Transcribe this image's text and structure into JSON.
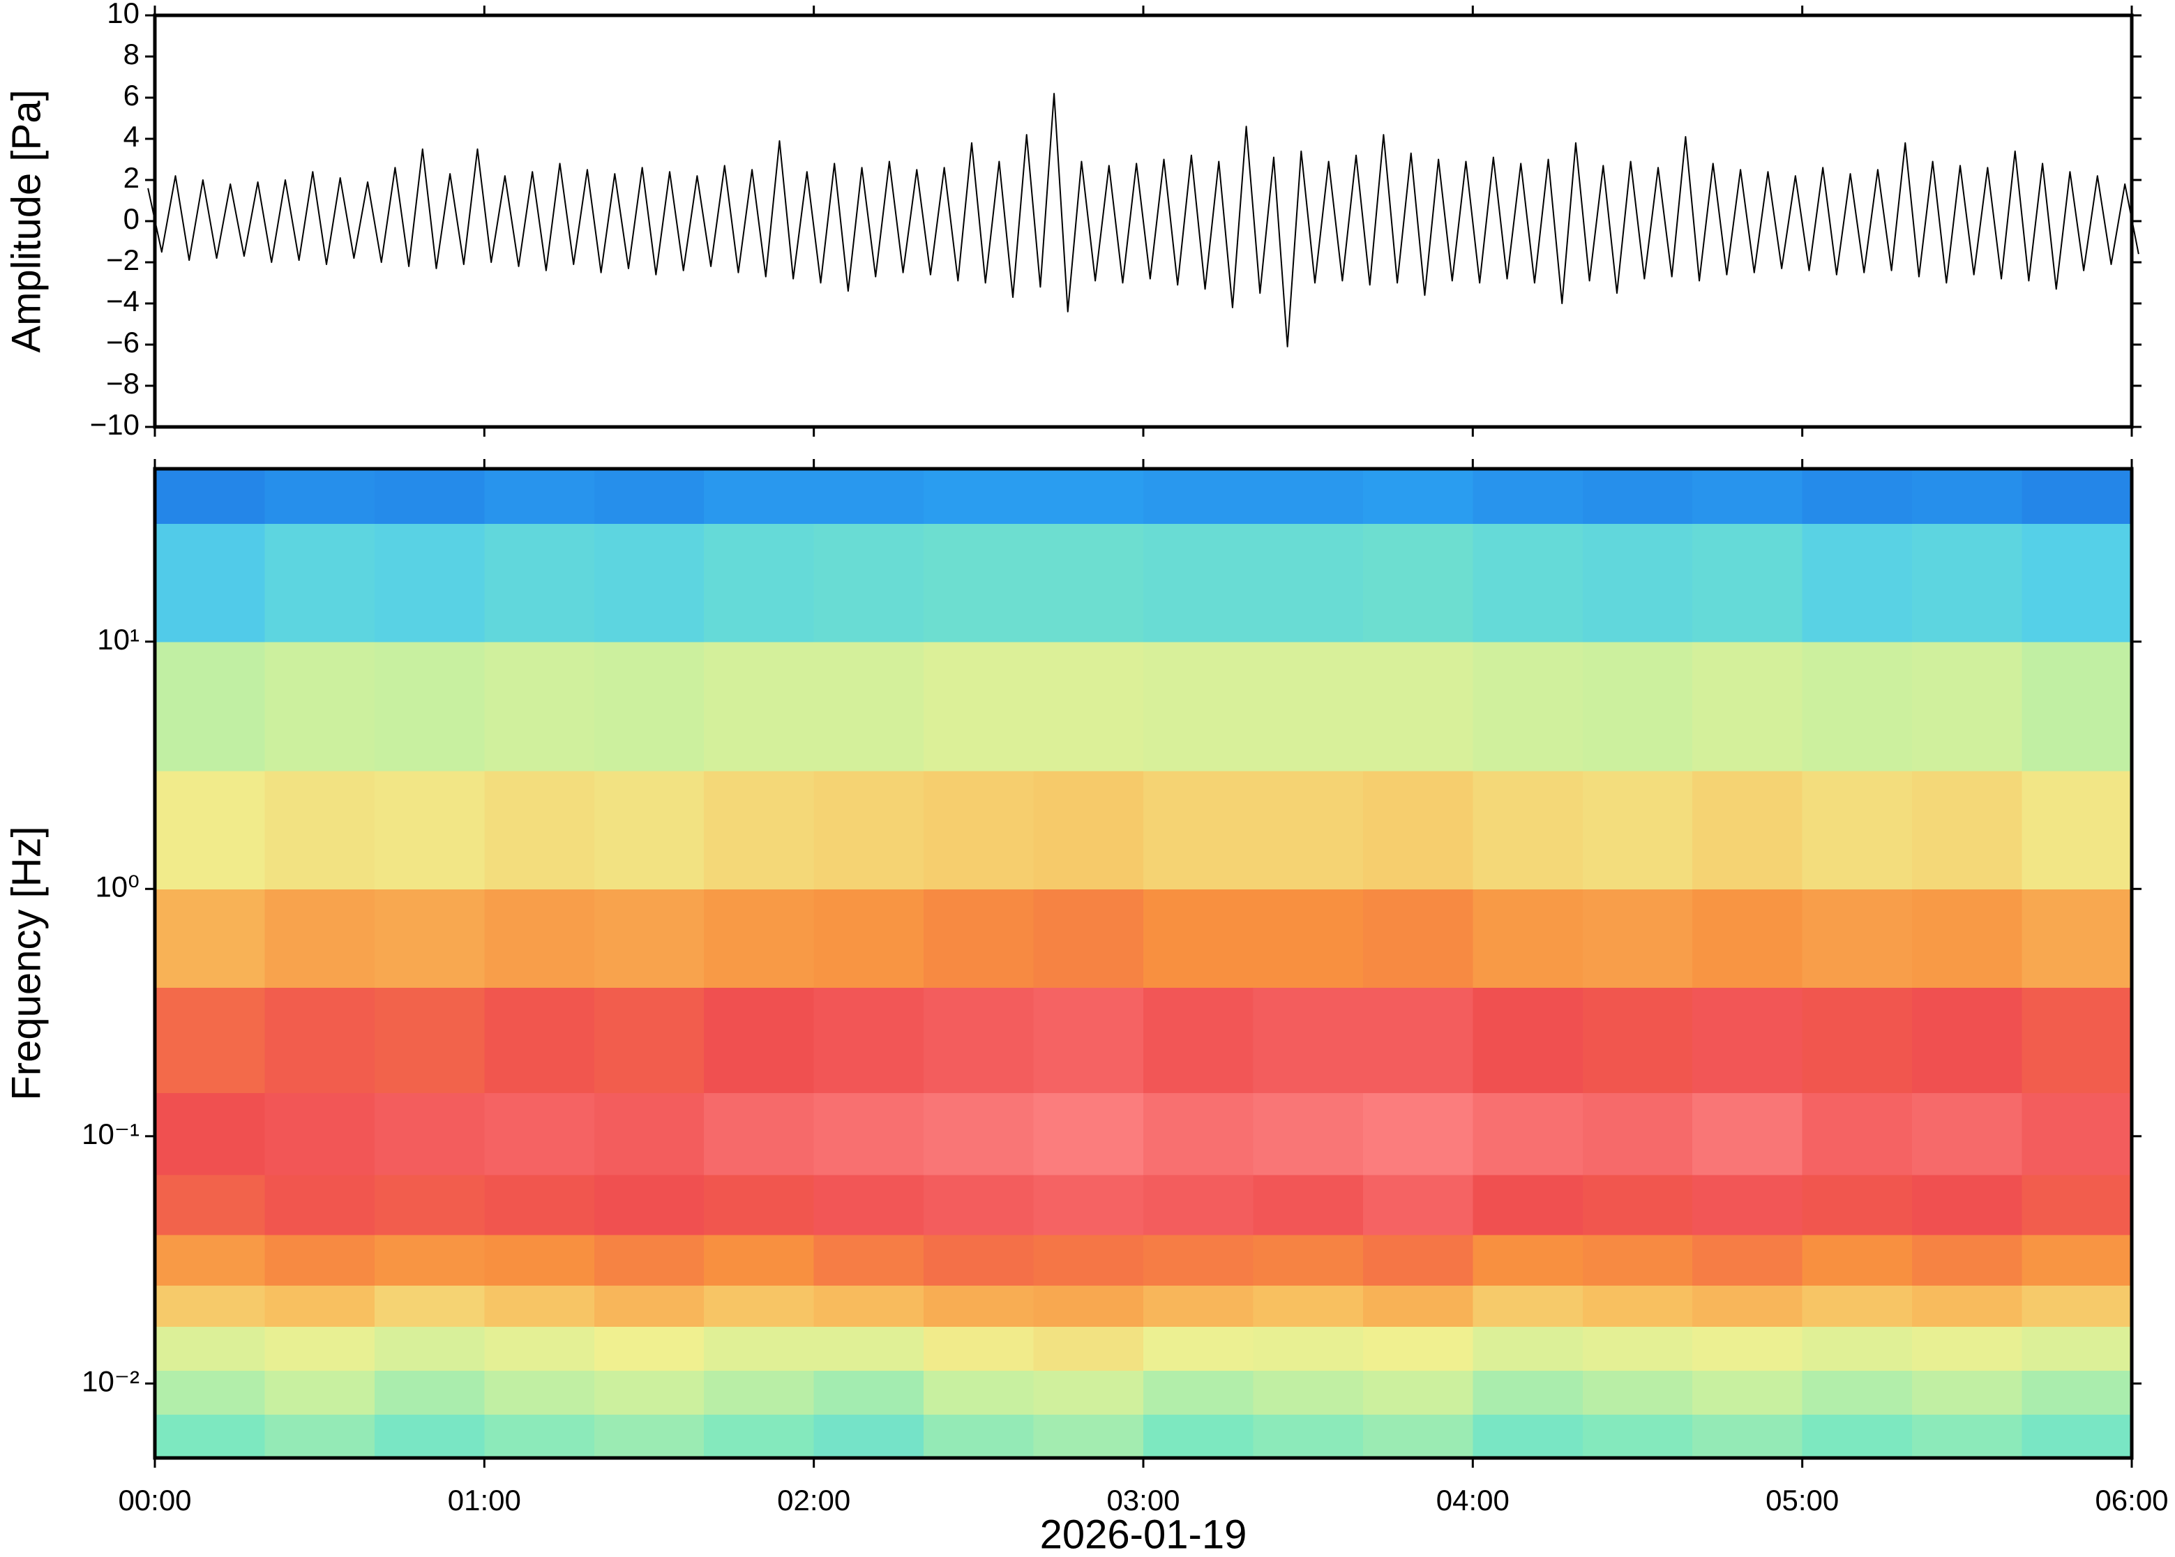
{
  "chart_data": [
    {
      "type": "range",
      "ylabel": "Amplitude [Pa]",
      "color": "#000000",
      "x": [
        0,
        5,
        10,
        15,
        20,
        25,
        30,
        35,
        40,
        45,
        50,
        55,
        60,
        65,
        70,
        75,
        80,
        85,
        90,
        95,
        100,
        105,
        110,
        115,
        120,
        125,
        130,
        135,
        140,
        145,
        150,
        155,
        160,
        165,
        170,
        175,
        180,
        185,
        190,
        195,
        200,
        205,
        210,
        215,
        220,
        225,
        230,
        235,
        240,
        245,
        250,
        255,
        260,
        265,
        270,
        275,
        280,
        285,
        290,
        295,
        300,
        305,
        310,
        315,
        320,
        325,
        330,
        335,
        340,
        345,
        350,
        355,
        360
      ],
      "high": [
        1.6,
        2.2,
        2.0,
        1.8,
        1.9,
        2.0,
        2.4,
        2.1,
        1.9,
        2.6,
        3.5,
        2.3,
        3.5,
        2.2,
        2.4,
        2.8,
        2.5,
        2.3,
        2.6,
        2.4,
        2.2,
        2.7,
        2.5,
        3.9,
        2.4,
        2.8,
        2.6,
        2.9,
        2.5,
        2.6,
        3.8,
        2.9,
        4.2,
        6.2,
        2.9,
        2.7,
        2.8,
        3.0,
        3.2,
        2.9,
        4.6,
        3.1,
        3.4,
        2.9,
        3.2,
        4.2,
        3.3,
        3.0,
        2.9,
        3.1,
        2.8,
        3.0,
        3.8,
        2.7,
        2.9,
        2.6,
        4.1,
        2.8,
        2.5,
        2.4,
        2.2,
        2.6,
        2.3,
        2.5,
        3.8,
        2.9,
        2.7,
        2.6,
        3.4,
        2.8,
        2.4,
        2.2,
        1.8
      ],
      "low": [
        -1.5,
        -1.9,
        -1.8,
        -1.7,
        -2.0,
        -1.9,
        -2.1,
        -1.8,
        -2.0,
        -2.2,
        -2.3,
        -2.1,
        -2.0,
        -2.2,
        -2.4,
        -2.1,
        -2.5,
        -2.3,
        -2.6,
        -2.4,
        -2.2,
        -2.5,
        -2.7,
        -2.8,
        -3.0,
        -3.4,
        -2.7,
        -2.5,
        -2.6,
        -2.9,
        -3.0,
        -3.7,
        -3.2,
        -4.4,
        -2.9,
        -3.0,
        -2.8,
        -3.1,
        -3.3,
        -4.2,
        -3.5,
        -6.1,
        -3.0,
        -2.9,
        -3.1,
        -3.0,
        -3.6,
        -2.9,
        -3.0,
        -2.8,
        -3.0,
        -4.0,
        -2.9,
        -3.5,
        -2.8,
        -2.7,
        -2.9,
        -2.6,
        -2.5,
        -2.3,
        -2.4,
        -2.6,
        -2.5,
        -2.4,
        -2.7,
        -3.0,
        -2.6,
        -2.8,
        -2.9,
        -3.3,
        -2.4,
        -2.1,
        -1.6
      ],
      "xlim": [
        0,
        360
      ],
      "xticks": [
        0,
        60,
        120,
        180,
        240,
        300,
        360
      ],
      "ylim": [
        -10,
        10
      ],
      "yticks": [
        {
          "value": -10,
          "label": "−10"
        },
        {
          "value": -8,
          "label": "−8"
        },
        {
          "value": -6,
          "label": "−6"
        },
        {
          "value": -4,
          "label": "−4"
        },
        {
          "value": -2,
          "label": "−2"
        },
        0,
        2,
        4,
        6,
        8,
        10
      ]
    },
    {
      "type": "heatmap",
      "ylabel": "Frequency [Hz]",
      "xlabel": "2026-01-19",
      "log_y": true,
      "x_bins": [
        0,
        20,
        40,
        60,
        80,
        100,
        120,
        140,
        160,
        180,
        200,
        220,
        240,
        260,
        280,
        300,
        320,
        340,
        360
      ],
      "y_bins": [
        0.005,
        0.0075,
        0.0113,
        0.017,
        0.025,
        0.04,
        0.07,
        0.15,
        0.4,
        1,
        3,
        10,
        30,
        50
      ],
      "zlim": [
        0,
        10
      ],
      "colormap": [
        "#0a1f8f",
        "#1e6fe0",
        "#2a9df0",
        "#55d0e8",
        "#7de8c0",
        "#c8f0a0",
        "#f0f090",
        "#f8c060",
        "#f89040",
        "#f05050",
        "#ff9090"
      ],
      "z": [
        [
          4.0,
          4.3,
          3.9,
          4.2,
          4.4,
          4.1,
          3.8,
          4.3,
          4.5,
          4.0,
          4.2,
          4.4,
          3.9,
          4.1,
          4.3,
          4.0,
          4.2,
          3.9
        ],
        [
          4.7,
          5.0,
          4.6,
          4.9,
          5.1,
          4.8,
          4.5,
          5.0,
          5.2,
          4.7,
          4.9,
          5.1,
          4.6,
          4.8,
          5.0,
          4.7,
          4.9,
          4.6
        ],
        [
          5.5,
          5.8,
          5.4,
          5.7,
          6.0,
          5.6,
          5.6,
          6.1,
          6.3,
          5.9,
          5.8,
          6.0,
          5.5,
          5.7,
          5.9,
          5.6,
          5.8,
          5.5
        ],
        [
          6.8,
          7.0,
          6.6,
          6.9,
          7.2,
          6.9,
          7.1,
          7.4,
          7.5,
          7.2,
          7.0,
          7.3,
          6.8,
          7.0,
          7.2,
          6.9,
          7.1,
          6.8
        ],
        [
          7.8,
          8.1,
          7.9,
          8.0,
          8.2,
          8.0,
          8.3,
          8.5,
          8.4,
          8.3,
          8.2,
          8.4,
          8.0,
          8.1,
          8.3,
          8.0,
          8.2,
          7.9
        ],
        [
          8.7,
          8.9,
          8.8,
          8.9,
          9.0,
          8.9,
          9.1,
          9.2,
          9.3,
          9.2,
          9.1,
          9.3,
          9.0,
          8.9,
          9.1,
          8.9,
          9.0,
          8.8
        ],
        [
          9.0,
          9.1,
          9.2,
          9.3,
          9.2,
          9.4,
          9.5,
          9.6,
          9.7,
          9.5,
          9.6,
          9.7,
          9.5,
          9.4,
          9.6,
          9.3,
          9.4,
          9.2
        ],
        [
          8.6,
          8.8,
          8.7,
          8.9,
          8.8,
          9.0,
          9.1,
          9.2,
          9.3,
          9.1,
          9.2,
          9.2,
          9.0,
          8.9,
          9.1,
          8.9,
          9.0,
          8.8
        ],
        [
          7.3,
          7.6,
          7.5,
          7.7,
          7.6,
          7.8,
          7.9,
          8.1,
          8.2,
          8.0,
          8.0,
          8.1,
          7.8,
          7.7,
          7.9,
          7.7,
          7.8,
          7.5
        ],
        [
          6.1,
          6.3,
          6.2,
          6.4,
          6.3,
          6.5,
          6.6,
          6.7,
          6.8,
          6.6,
          6.6,
          6.7,
          6.5,
          6.4,
          6.6,
          6.4,
          6.5,
          6.2
        ],
        [
          4.9,
          5.1,
          5.0,
          5.2,
          5.1,
          5.3,
          5.3,
          5.5,
          5.5,
          5.4,
          5.4,
          5.4,
          5.2,
          5.1,
          5.3,
          5.1,
          5.2,
          4.9
        ],
        [
          2.9,
          3.2,
          3.1,
          3.3,
          3.2,
          3.4,
          3.5,
          3.6,
          3.6,
          3.5,
          3.5,
          3.6,
          3.4,
          3.3,
          3.4,
          3.1,
          3.2,
          3.0
        ],
        [
          1.5,
          1.7,
          1.6,
          1.8,
          1.7,
          1.9,
          1.9,
          2.0,
          2.0,
          1.9,
          1.9,
          2.0,
          1.8,
          1.7,
          1.8,
          1.6,
          1.7,
          1.5
        ]
      ],
      "xlim": [
        0,
        360
      ],
      "xticks": [
        {
          "value": 0,
          "label": "00:00"
        },
        {
          "value": 60,
          "label": "01:00"
        },
        {
          "value": 120,
          "label": "02:00"
        },
        {
          "value": 180,
          "label": "03:00"
        },
        {
          "value": 240,
          "label": "04:00"
        },
        {
          "value": 300,
          "label": "05:00"
        },
        {
          "value": 360,
          "label": "06:00"
        }
      ],
      "ylim": [
        0.005,
        50
      ],
      "yticks": [
        {
          "value": 0.01,
          "label": "10⁻²"
        },
        {
          "value": 0.1,
          "label": "10⁻¹"
        },
        {
          "value": 1,
          "label": "10⁰"
        },
        {
          "value": 10,
          "label": "10¹"
        }
      ]
    }
  ]
}
